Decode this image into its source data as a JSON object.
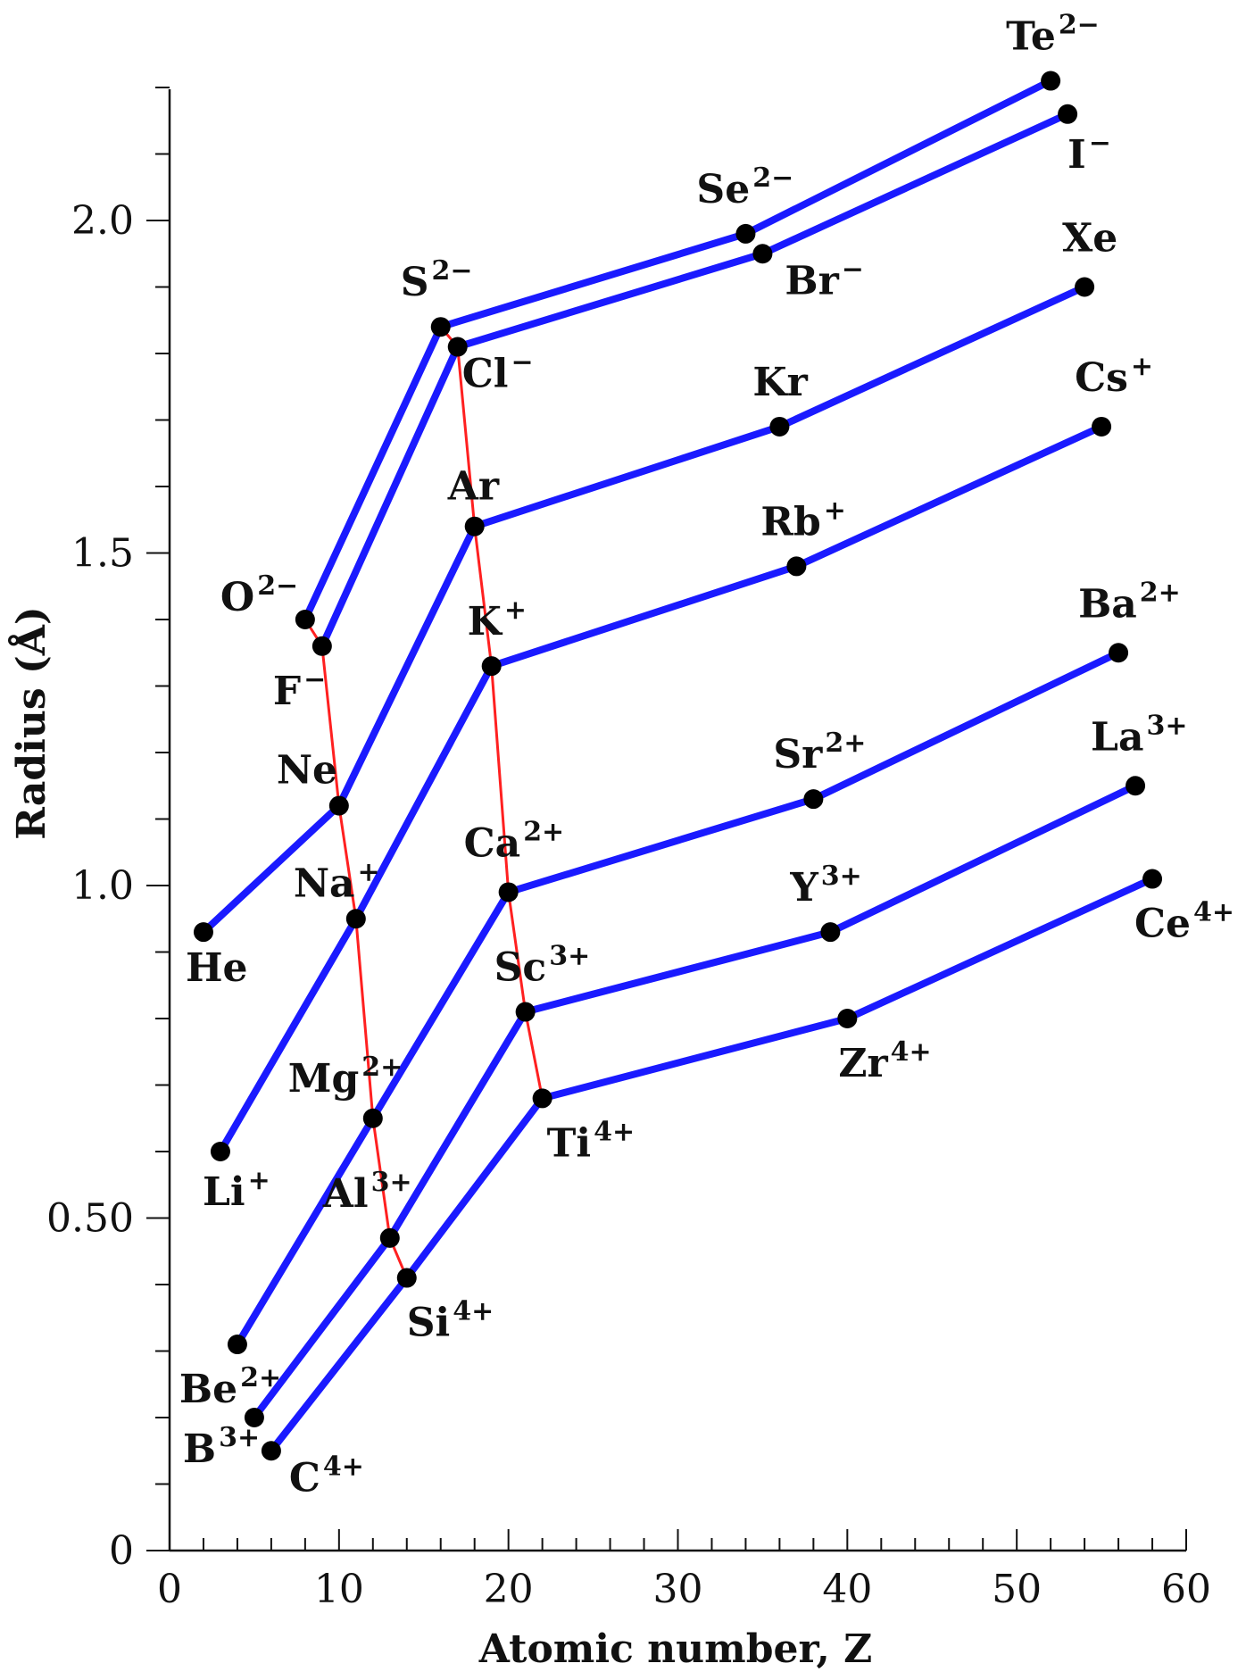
{
  "chart_data": {
    "type": "line",
    "xlabel": "Atomic number, Z",
    "ylabel": "Radius (Å)",
    "xlim": [
      0,
      60
    ],
    "ylim": [
      0,
      2.2
    ],
    "x_ticks": [
      "0",
      "10",
      "20",
      "30",
      "40",
      "50",
      "60"
    ],
    "y_ticks": [
      {
        "value": 0,
        "label": "0"
      },
      {
        "value": 0.5,
        "label": "0.50"
      },
      {
        "value": 1.0,
        "label": "1.0"
      },
      {
        "value": 1.5,
        "label": "1.5"
      },
      {
        "value": 2.0,
        "label": "2.0"
      }
    ],
    "grid": false,
    "colors": {
      "series": "#1a1aff",
      "trend": "#ff2020",
      "point": "#000000"
    },
    "series": [
      {
        "points": [
          {
            "z": 2,
            "r": 0.93,
            "base": "He",
            "sup": ""
          },
          {
            "z": 10,
            "r": 1.12,
            "base": "Ne",
            "sup": ""
          },
          {
            "z": 18,
            "r": 1.54,
            "base": "Ar",
            "sup": ""
          },
          {
            "z": 36,
            "r": 1.69,
            "base": "Kr",
            "sup": ""
          },
          {
            "z": 54,
            "r": 1.9,
            "base": "Xe",
            "sup": ""
          }
        ]
      },
      {
        "points": [
          {
            "z": 3,
            "r": 0.6,
            "base": "Li",
            "sup": "+"
          },
          {
            "z": 11,
            "r": 0.95,
            "base": "Na",
            "sup": "+"
          },
          {
            "z": 19,
            "r": 1.33,
            "base": "K",
            "sup": "+"
          },
          {
            "z": 37,
            "r": 1.48,
            "base": "Rb",
            "sup": "+"
          },
          {
            "z": 55,
            "r": 1.69,
            "base": "Cs",
            "sup": "+"
          }
        ]
      },
      {
        "points": [
          {
            "z": 4,
            "r": 0.31,
            "base": "Be",
            "sup": "2+"
          },
          {
            "z": 12,
            "r": 0.65,
            "base": "Mg",
            "sup": "2+"
          },
          {
            "z": 20,
            "r": 0.99,
            "base": "Ca",
            "sup": "2+"
          },
          {
            "z": 38,
            "r": 1.13,
            "base": "Sr",
            "sup": "2+"
          },
          {
            "z": 56,
            "r": 1.35,
            "base": "Ba",
            "sup": "2+"
          }
        ]
      },
      {
        "points": [
          {
            "z": 5,
            "r": 0.2,
            "base": "B",
            "sup": "3+"
          },
          {
            "z": 13,
            "r": 0.47,
            "base": "Al",
            "sup": "3+"
          },
          {
            "z": 21,
            "r": 0.81,
            "base": "Sc",
            "sup": "3+"
          },
          {
            "z": 39,
            "r": 0.93,
            "base": "Y",
            "sup": "3+"
          },
          {
            "z": 57,
            "r": 1.15,
            "base": "La",
            "sup": "3+"
          }
        ]
      },
      {
        "points": [
          {
            "z": 6,
            "r": 0.15,
            "base": "C",
            "sup": "4+"
          },
          {
            "z": 14,
            "r": 0.41,
            "base": "Si",
            "sup": "4+"
          },
          {
            "z": 22,
            "r": 0.68,
            "base": "Ti",
            "sup": "4+"
          },
          {
            "z": 40,
            "r": 0.8,
            "base": "Zr",
            "sup": "4+"
          },
          {
            "z": 58,
            "r": 1.01,
            "base": "Ce",
            "sup": "4+"
          }
        ]
      },
      {
        "points": [
          {
            "z": 8,
            "r": 1.4,
            "base": "O",
            "sup": "2−"
          },
          {
            "z": 16,
            "r": 1.84,
            "base": "S",
            "sup": "2−"
          },
          {
            "z": 34,
            "r": 1.98,
            "base": "Se",
            "sup": "2−"
          },
          {
            "z": 52,
            "r": 2.21,
            "base": "Te",
            "sup": "2−"
          }
        ]
      },
      {
        "points": [
          {
            "z": 9,
            "r": 1.36,
            "base": "F",
            "sup": "−"
          },
          {
            "z": 17,
            "r": 1.81,
            "base": "Cl",
            "sup": "−"
          },
          {
            "z": 35,
            "r": 1.95,
            "base": "Br",
            "sup": "−"
          },
          {
            "z": 53,
            "r": 2.16,
            "base": "I",
            "sup": "−"
          }
        ]
      }
    ],
    "trend_line": {
      "description": "isoelectronic trend",
      "segments": [
        [
          {
            "z": 8,
            "r": 1.4
          },
          {
            "z": 9,
            "r": 1.36
          },
          {
            "z": 10,
            "r": 1.12
          },
          {
            "z": 11,
            "r": 0.95
          },
          {
            "z": 12,
            "r": 0.65
          },
          {
            "z": 13,
            "r": 0.47
          },
          {
            "z": 14,
            "r": 0.41
          }
        ],
        [
          {
            "z": 16,
            "r": 1.84
          },
          {
            "z": 17,
            "r": 1.81
          },
          {
            "z": 18,
            "r": 1.54
          },
          {
            "z": 19,
            "r": 1.33
          },
          {
            "z": 20,
            "r": 0.99
          },
          {
            "z": 21,
            "r": 0.81
          },
          {
            "z": 22,
            "r": 0.68
          }
        ]
      ]
    }
  }
}
